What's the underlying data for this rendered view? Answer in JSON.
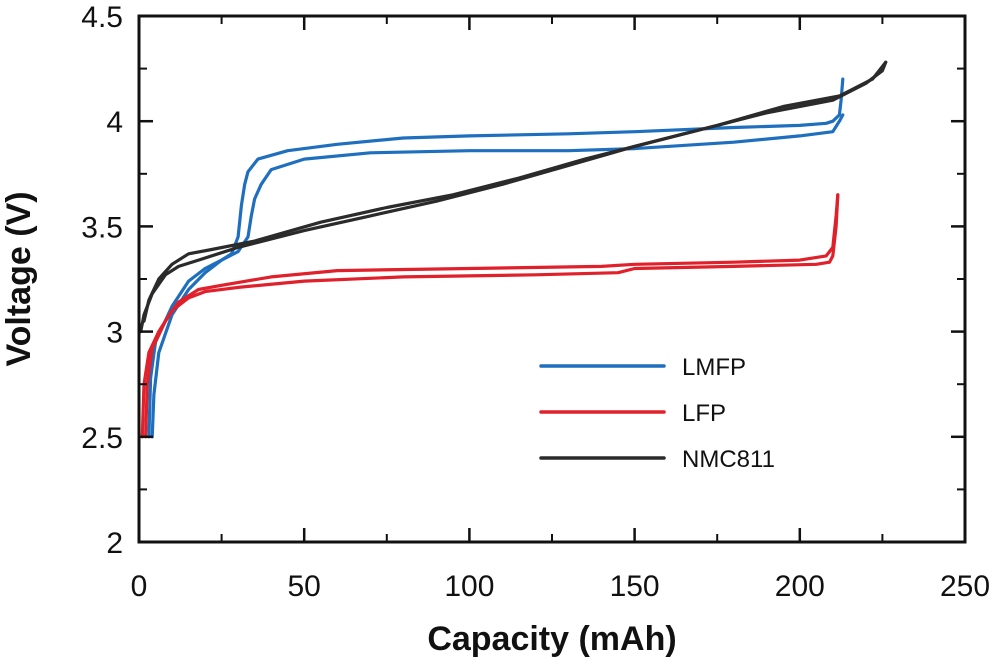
{
  "chart_data": {
    "type": "line",
    "title": "",
    "xlabel": "Capacity (mAh)",
    "ylabel": "Voltage (V)",
    "xlim": [
      0,
      250
    ],
    "ylim": [
      2,
      4.5
    ],
    "xticks": [
      0,
      50,
      100,
      150,
      200,
      250
    ],
    "xtick_labels": [
      "0",
      "50",
      "100",
      "150",
      "200",
      "250"
    ],
    "yticks": [
      2,
      2.5,
      3,
      3.5,
      4,
      4.5
    ],
    "ytick_labels": [
      "2",
      "2.5",
      "3",
      "3.5",
      "4",
      "4.5"
    ],
    "grid": false,
    "legend_position": "bottom-right",
    "series": [
      {
        "name": "LMFP",
        "color": "#1f6fbf",
        "curves": [
          [
            [
              3,
              2.5
            ],
            [
              3.5,
              2.78
            ],
            [
              5,
              2.95
            ],
            [
              10,
              3.12
            ],
            [
              15,
              3.24
            ],
            [
              20,
              3.3
            ],
            [
              25,
              3.34
            ],
            [
              28,
              3.37
            ],
            [
              30,
              3.45
            ],
            [
              31,
              3.6
            ],
            [
              32,
              3.7
            ],
            [
              33,
              3.76
            ],
            [
              36,
              3.82
            ],
            [
              45,
              3.86
            ],
            [
              60,
              3.89
            ],
            [
              80,
              3.92
            ],
            [
              100,
              3.93
            ],
            [
              130,
              3.94
            ],
            [
              150,
              3.95
            ],
            [
              180,
              3.97
            ],
            [
              200,
              3.98
            ],
            [
              208,
              3.99
            ],
            [
              210,
              4.0
            ],
            [
              212,
              4.03
            ],
            [
              212.5,
              4.1
            ],
            [
              213,
              4.2
            ]
          ],
          [
            [
              4,
              2.5
            ],
            [
              4.5,
              2.7
            ],
            [
              6,
              2.9
            ],
            [
              10,
              3.08
            ],
            [
              15,
              3.2
            ],
            [
              20,
              3.28
            ],
            [
              25,
              3.34
            ],
            [
              30,
              3.38
            ],
            [
              33,
              3.45
            ],
            [
              34,
              3.55
            ],
            [
              35,
              3.63
            ],
            [
              37,
              3.7
            ],
            [
              40,
              3.77
            ],
            [
              50,
              3.82
            ],
            [
              70,
              3.85
            ],
            [
              100,
              3.86
            ],
            [
              130,
              3.86
            ],
            [
              150,
              3.87
            ],
            [
              180,
              3.9
            ],
            [
              200,
              3.93
            ],
            [
              210,
              3.95
            ],
            [
              212,
              4.0
            ],
            [
              213,
              4.03
            ]
          ]
        ]
      },
      {
        "name": "LFP",
        "color": "#e0202a",
        "curves": [
          [
            [
              1,
              2.5
            ],
            [
              1.5,
              2.75
            ],
            [
              3,
              2.9
            ],
            [
              6,
              3.0
            ],
            [
              10,
              3.1
            ],
            [
              15,
              3.16
            ],
            [
              20,
              3.19
            ],
            [
              30,
              3.21
            ],
            [
              50,
              3.24
            ],
            [
              80,
              3.26
            ],
            [
              120,
              3.27
            ],
            [
              145,
              3.28
            ],
            [
              150,
              3.3
            ],
            [
              180,
              3.31
            ],
            [
              205,
              3.32
            ],
            [
              209,
              3.33
            ],
            [
              210,
              3.36
            ],
            [
              211,
              3.5
            ],
            [
              211.5,
              3.65
            ]
          ],
          [
            [
              2,
              2.5
            ],
            [
              2.5,
              2.75
            ],
            [
              4,
              2.92
            ],
            [
              8,
              3.05
            ],
            [
              12,
              3.14
            ],
            [
              18,
              3.2
            ],
            [
              25,
              3.22
            ],
            [
              40,
              3.26
            ],
            [
              60,
              3.29
            ],
            [
              100,
              3.3
            ],
            [
              140,
              3.31
            ],
            [
              150,
              3.32
            ],
            [
              180,
              3.33
            ],
            [
              200,
              3.34
            ],
            [
              208,
              3.36
            ],
            [
              210,
              3.4
            ],
            [
              211,
              3.55
            ],
            [
              211.5,
              3.65
            ]
          ]
        ]
      },
      {
        "name": "NMC811",
        "color": "#2b2b2b",
        "curves": [
          [
            [
              0.5,
              3.0
            ],
            [
              1.5,
              3.08
            ],
            [
              4,
              3.18
            ],
            [
              8,
              3.27
            ],
            [
              12,
              3.31
            ],
            [
              18,
              3.34
            ],
            [
              30,
              3.4
            ],
            [
              50,
              3.48
            ],
            [
              70,
              3.55
            ],
            [
              90,
              3.62
            ],
            [
              110,
              3.7
            ],
            [
              130,
              3.79
            ],
            [
              150,
              3.88
            ],
            [
              170,
              3.96
            ],
            [
              190,
              4.04
            ],
            [
              210,
              4.1
            ],
            [
              220,
              4.18
            ],
            [
              225,
              4.24
            ],
            [
              226,
              4.28
            ]
          ],
          [
            [
              1.5,
              3.05
            ],
            [
              3,
              3.15
            ],
            [
              6,
              3.25
            ],
            [
              10,
              3.32
            ],
            [
              15,
              3.37
            ],
            [
              22,
              3.39
            ],
            [
              35,
              3.43
            ],
            [
              55,
              3.52
            ],
            [
              75,
              3.59
            ],
            [
              95,
              3.65
            ],
            [
              115,
              3.73
            ],
            [
              135,
              3.82
            ],
            [
              155,
              3.9
            ],
            [
              175,
              3.98
            ],
            [
              195,
              4.07
            ],
            [
              212,
              4.12
            ],
            [
              222,
              4.2
            ],
            [
              226,
              4.28
            ]
          ]
        ]
      }
    ]
  }
}
